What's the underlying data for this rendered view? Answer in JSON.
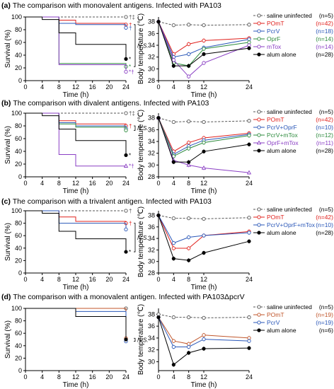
{
  "chart_data": [
    {
      "panel": "(a)",
      "title": "The comparison with monovalent antigens. Infected with PA103",
      "survival": {
        "type": "line",
        "xlabel": "Time (h)",
        "ylabel": "Survival (%)",
        "xticks": [
          0,
          4,
          8,
          12,
          16,
          20,
          24
        ],
        "yticks": [
          0,
          20,
          40,
          60,
          80,
          100
        ],
        "xlim": [
          0,
          24
        ],
        "ylim": [
          0,
          100
        ],
        "annotation": "N.S.",
        "series": [
          {
            "key": "saline",
            "x": [
              0,
              24
            ],
            "y": [
              100,
              100
            ],
            "marks": "†‡"
          },
          {
            "key": "pomt",
            "x": [
              0,
              8,
              12,
              24
            ],
            "y": [
              100,
              95,
              90,
              88
            ],
            "marks": "†"
          },
          {
            "key": "pcrv",
            "x": [
              0,
              8,
              12,
              24
            ],
            "y": [
              100,
              90,
              88,
              83
            ],
            "marks": "†"
          },
          {
            "key": "oprf",
            "x": [
              0,
              8,
              24
            ],
            "y": [
              100,
              27,
              22
            ],
            "marks": "*"
          },
          {
            "key": "mtox",
            "x": [
              0,
              8,
              24
            ],
            "y": [
              100,
              25,
              14
            ],
            "marks": "*†"
          },
          {
            "key": "alum",
            "x": [
              0,
              4,
              8,
              12,
              24
            ],
            "y": [
              100,
              96,
              75,
              57,
              34
            ],
            "marks": "*"
          }
        ]
      },
      "temperature": {
        "type": "line",
        "xlabel": "Time (h)",
        "ylabel": "Body temperature (℃)",
        "xticks": [
          0,
          4,
          8,
          12,
          24
        ],
        "yticks": [
          28,
          30,
          32,
          34,
          36,
          38
        ],
        "xlim": [
          0,
          24
        ],
        "ylim": [
          28,
          38.8
        ],
        "series": [
          {
            "key": "saline",
            "x": [
              0,
              4,
              8,
              12,
              24
            ],
            "y": [
              38,
              37.4,
              37.5,
              37.4,
              37.5
            ]
          },
          {
            "key": "pomt",
            "x": [
              0,
              4,
              8,
              12,
              24
            ],
            "y": [
              38,
              32.5,
              34.2,
              34.8,
              35.2
            ]
          },
          {
            "key": "pcrv",
            "x": [
              0,
              4,
              8,
              12,
              24
            ],
            "y": [
              38,
              32,
              32.5,
              33.6,
              35
            ]
          },
          {
            "key": "oprf",
            "x": [
              0,
              4,
              8,
              12,
              24
            ],
            "y": [
              38,
              31,
              30.5,
              33.4,
              34.5
            ]
          },
          {
            "key": "mtox",
            "x": [
              0,
              4,
              8,
              12,
              24
            ],
            "y": [
              38,
              31.5,
              28.7,
              31,
              34
            ]
          },
          {
            "key": "alum",
            "x": [
              0,
              4,
              8,
              12,
              24
            ],
            "y": [
              38,
              30.5,
              30.5,
              32.5,
              33.5
            ]
          }
        ]
      },
      "legend": [
        {
          "key": "saline",
          "label": "saline uninfected",
          "n": "(n=5)",
          "color": "#555555",
          "marker": "circle",
          "dashed": true
        },
        {
          "key": "pomt",
          "label": "POmT",
          "n": "(n=42)",
          "color": "#e0201c",
          "marker": "circle",
          "dashed": false
        },
        {
          "key": "pcrv",
          "label": "PcrV",
          "n": "(n=18)",
          "color": "#2a57b8",
          "marker": "circle",
          "dashed": false
        },
        {
          "key": "oprf",
          "label": "OprF",
          "n": "(n=14)",
          "color": "#2e8b3e",
          "marker": "circle",
          "dashed": false
        },
        {
          "key": "mtox",
          "label": "mTox",
          "n": "(n=14)",
          "color": "#8a3fc4",
          "marker": "circle",
          "dashed": false
        },
        {
          "key": "alum",
          "label": "alum alone",
          "n": "(n=28)",
          "color": "#000000",
          "marker": "filled",
          "dashed": false
        }
      ]
    },
    {
      "panel": "(b)",
      "title": "The comparison with divalent antigens. Infected with PA103",
      "survival": {
        "type": "line",
        "xlabel": "Time (h)",
        "ylabel": "Survival (%)",
        "xticks": [
          0,
          4,
          8,
          12,
          16,
          20,
          24
        ],
        "yticks": [
          0,
          20,
          40,
          60,
          80,
          100
        ],
        "xlim": [
          0,
          24
        ],
        "ylim": [
          0,
          100
        ],
        "annotation": "N.S.",
        "series": [
          {
            "key": "saline",
            "x": [
              0,
              24
            ],
            "y": [
              100,
              100
            ],
            "marks": "†‡"
          },
          {
            "key": "pomt",
            "x": [
              0,
              8,
              12,
              24
            ],
            "y": [
              100,
              88,
              83,
              80
            ],
            "marks": "†"
          },
          {
            "key": "pcrv_oprf",
            "x": [
              0,
              8,
              12,
              24
            ],
            "y": [
              100,
              85,
              80,
              76
            ],
            "marks": ""
          },
          {
            "key": "pcrv_mtox",
            "x": [
              0,
              8,
              12,
              24
            ],
            "y": [
              100,
              83,
              78,
              73
            ],
            "marks": ""
          },
          {
            "key": "oprf_mtox",
            "x": [
              0,
              8,
              12,
              24
            ],
            "y": [
              100,
              35,
              17,
              17
            ],
            "marks": "*†"
          },
          {
            "key": "alum",
            "x": [
              0,
              4,
              8,
              12,
              24
            ],
            "y": [
              100,
              96,
              75,
              57,
              34
            ],
            "marks": "*"
          }
        ]
      },
      "temperature": {
        "type": "line",
        "xlabel": "Time (h)",
        "ylabel": "Body temperature (℃)",
        "xticks": [
          0,
          4,
          8,
          12,
          24
        ],
        "yticks": [
          28,
          30,
          32,
          34,
          36,
          38
        ],
        "xlim": [
          0,
          24
        ],
        "ylim": [
          28,
          38.8
        ],
        "series": [
          {
            "key": "saline",
            "x": [
              0,
              4,
              8,
              12,
              24
            ],
            "y": [
              38,
              37.3,
              37.4,
              37.3,
              37.5
            ]
          },
          {
            "key": "pomt",
            "x": [
              0,
              4,
              8,
              12,
              24
            ],
            "y": [
              38,
              32.3,
              33.8,
              34.6,
              35.4
            ]
          },
          {
            "key": "pcrv_oprf",
            "x": [
              0,
              4,
              8,
              12,
              24
            ],
            "y": [
              38,
              31.8,
              33.2,
              34.2,
              35.2
            ]
          },
          {
            "key": "pcrv_mtox",
            "x": [
              0,
              4,
              8,
              12,
              24
            ],
            "y": [
              38,
              31.5,
              32.8,
              33.8,
              35
            ]
          },
          {
            "key": "oprf_mtox",
            "x": [
              0,
              4,
              8,
              12,
              24
            ],
            "y": [
              38,
              30.8,
              30,
              29.5,
              28.7
            ]
          },
          {
            "key": "alum",
            "x": [
              0,
              4,
              8,
              12,
              24
            ],
            "y": [
              38,
              30.5,
              30.5,
              32.3,
              33.5
            ]
          }
        ]
      },
      "legend": [
        {
          "key": "saline",
          "label": "saline uninfected",
          "n": "(n=5)",
          "color": "#555555",
          "marker": "circle",
          "dashed": true
        },
        {
          "key": "pomt",
          "label": "POmT",
          "n": "(n=42)",
          "color": "#e0201c",
          "marker": "circle",
          "dashed": false
        },
        {
          "key": "pcrv_oprf",
          "label": "PcrV+OprF",
          "n": "(n=10)",
          "color": "#2a57b8",
          "marker": "circle",
          "dashed": false
        },
        {
          "key": "pcrv_mtox",
          "label": "PcrV+mTox",
          "n": "(n=12)",
          "color": "#2e8b3e",
          "marker": "circle",
          "dashed": false
        },
        {
          "key": "oprf_mtox",
          "label": "OprF+mTox",
          "n": "(n=11)",
          "color": "#8a3fc4",
          "marker": "triangle",
          "dashed": false
        },
        {
          "key": "alum",
          "label": "alum alone",
          "n": "(n=28)",
          "color": "#000000",
          "marker": "filled",
          "dashed": false
        }
      ]
    },
    {
      "panel": "(c)",
      "title": "The comparison with a trivalent antigen. Infected with PA103",
      "survival": {
        "type": "line",
        "xlabel": "Time (h)",
        "ylabel": "Survival (%)",
        "xticks": [
          0,
          4,
          8,
          12,
          16,
          20,
          24
        ],
        "yticks": [
          0,
          20,
          40,
          60,
          80,
          100
        ],
        "xlim": [
          0,
          24
        ],
        "ylim": [
          0,
          100
        ],
        "annotation": "N.S.",
        "series": [
          {
            "key": "saline",
            "x": [
              0,
              24
            ],
            "y": [
              100,
              100
            ],
            "marks": "†"
          },
          {
            "key": "pomt",
            "x": [
              0,
              8,
              12,
              24
            ],
            "y": [
              100,
              90,
              83,
              80
            ],
            "marks": "†"
          },
          {
            "key": "trival",
            "x": [
              0,
              8,
              24
            ],
            "y": [
              100,
              80,
              70
            ],
            "marks": ""
          },
          {
            "key": "alum",
            "x": [
              0,
              4,
              8,
              12,
              24
            ],
            "y": [
              100,
              96,
              67,
              55,
              34
            ],
            "marks": "*"
          }
        ]
      },
      "temperature": {
        "type": "line",
        "xlabel": "Time (h)",
        "ylabel": "Body temperature (℃)",
        "xticks": [
          0,
          4,
          8,
          12,
          24
        ],
        "yticks": [
          28,
          30,
          32,
          34,
          36,
          38
        ],
        "xlim": [
          0,
          24
        ],
        "ylim": [
          28,
          38.8
        ],
        "series": [
          {
            "key": "saline",
            "x": [
              0,
              4,
              8,
              12,
              24
            ],
            "y": [
              38,
              37.5,
              37.5,
              37.4,
              37.6
            ]
          },
          {
            "key": "pomt",
            "x": [
              0,
              4,
              8,
              12,
              24
            ],
            "y": [
              38,
              32.3,
              32.3,
              34.5,
              35.2
            ]
          },
          {
            "key": "trival",
            "x": [
              0,
              4,
              8,
              12,
              24
            ],
            "y": [
              38,
              33.2,
              34.2,
              34.5,
              35
            ]
          },
          {
            "key": "alum",
            "x": [
              0,
              4,
              8,
              12,
              24
            ],
            "y": [
              38,
              30.5,
              30.2,
              31.5,
              33.5
            ]
          }
        ]
      },
      "legend": [
        {
          "key": "saline",
          "label": "saline uninfected",
          "n": "(n=5)",
          "color": "#555555",
          "marker": "circle",
          "dashed": true
        },
        {
          "key": "pomt",
          "label": "POmT",
          "n": "(n=42)",
          "color": "#e0201c",
          "marker": "circle",
          "dashed": false
        },
        {
          "key": "trival",
          "label": "PcrV+OprF+mTox",
          "n": "(n=10)",
          "color": "#2a57b8",
          "marker": "circle",
          "dashed": false
        },
        {
          "key": "alum",
          "label": "alum alone",
          "n": "(n=28)",
          "color": "#000000",
          "marker": "filled",
          "dashed": false
        }
      ]
    },
    {
      "panel": "(d)",
      "title": "The comparison with a monovalent antigen. Infected with PA103ΔpcrV",
      "survival": {
        "type": "line",
        "xlabel": "Time (h)",
        "ylabel": "Survival (%)",
        "xticks": [
          0,
          4,
          8,
          12,
          16,
          20,
          24
        ],
        "yticks": [
          0,
          20,
          40,
          60,
          80,
          100
        ],
        "xlim": [
          0,
          24
        ],
        "ylim": [
          0,
          100
        ],
        "annotation": "N.S.",
        "series": [
          {
            "key": "saline",
            "x": [
              0,
              24
            ],
            "y": [
              100,
              100
            ],
            "marks": ""
          },
          {
            "key": "pomt",
            "x": [
              0,
              12,
              23,
              24
            ],
            "y": [
              100,
              100,
              100,
              52
            ],
            "marks": ""
          },
          {
            "key": "pcrv",
            "x": [
              0,
              12,
              23,
              24
            ],
            "y": [
              100,
              95,
              95,
              47
            ],
            "marks": ""
          },
          {
            "key": "alum",
            "x": [
              0,
              12,
              23,
              24
            ],
            "y": [
              100,
              87,
              87,
              50
            ],
            "marks": ""
          }
        ]
      },
      "temperature": {
        "type": "line",
        "xlabel": "Time (h)",
        "ylabel": "Body temperature (℃)",
        "xticks": [
          0,
          4,
          8,
          12,
          24
        ],
        "yticks": [
          30,
          32,
          34,
          36,
          38
        ],
        "xlim": [
          0,
          24
        ],
        "ylim": [
          28.5,
          39
        ],
        "series": [
          {
            "key": "saline",
            "x": [
              0,
              4,
              8,
              12,
              24
            ],
            "y": [
              38,
              37.5,
              37.5,
              37.4,
              37.5
            ]
          },
          {
            "key": "pomt",
            "x": [
              0,
              4,
              8,
              12,
              24
            ],
            "y": [
              37.5,
              33.5,
              33,
              34.5,
              34
            ]
          },
          {
            "key": "pcrv",
            "x": [
              0,
              4,
              8,
              12,
              24
            ],
            "y": [
              37.5,
              32.5,
              32.5,
              33.8,
              33.5
            ]
          },
          {
            "key": "alum",
            "x": [
              0,
              4,
              8,
              12,
              24
            ],
            "y": [
              37.5,
              29.5,
              31.5,
              32.2,
              32.3
            ]
          }
        ]
      },
      "legend": [
        {
          "key": "saline",
          "label": "saline uninfected",
          "n": "(n=5)",
          "color": "#555555",
          "marker": "circle",
          "dashed": true
        },
        {
          "key": "pomt",
          "label": "POmT",
          "n": "(n=19)",
          "color": "#c0552a",
          "marker": "circle",
          "dashed": false
        },
        {
          "key": "pcrv",
          "label": "PcrV",
          "n": "(n=19)",
          "color": "#2a57b8",
          "marker": "circle",
          "dashed": false
        },
        {
          "key": "alum",
          "label": "alum alone",
          "n": "(n=6)",
          "color": "#000000",
          "marker": "filled",
          "dashed": false
        }
      ]
    }
  ]
}
